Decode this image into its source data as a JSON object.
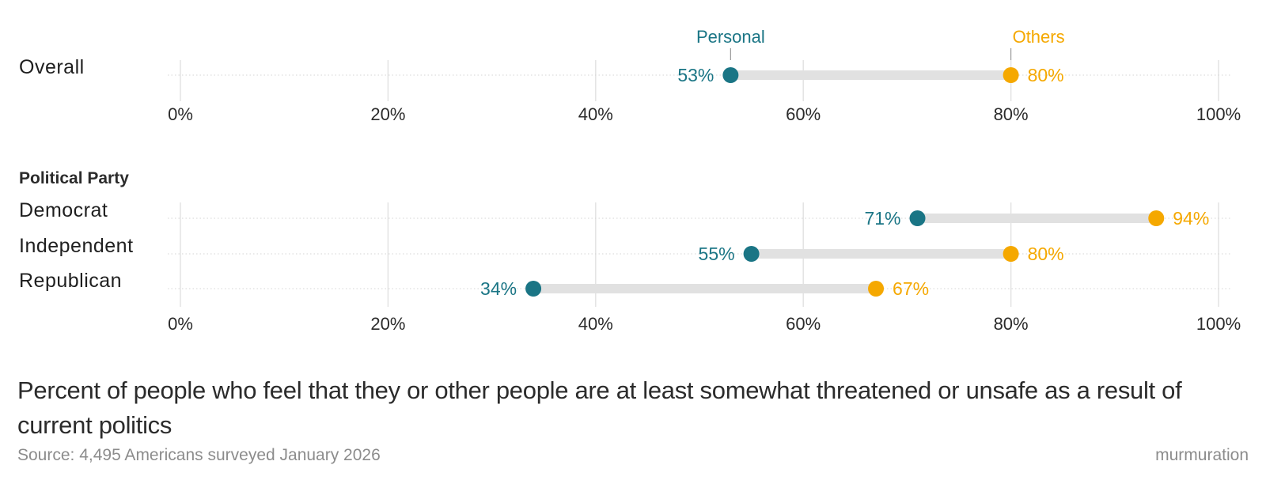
{
  "chart_data": {
    "type": "dumbbell",
    "series": [
      {
        "name": "Personal",
        "color": "#1a7585"
      },
      {
        "name": "Others",
        "color": "#f5a800"
      }
    ],
    "xlim": [
      0,
      100
    ],
    "ticks": [
      "0%",
      "20%",
      "40%",
      "60%",
      "80%",
      "100%"
    ],
    "panels": [
      {
        "id": "overall",
        "heading": "",
        "show_series_labels": true,
        "rows": [
          {
            "label": "Overall",
            "personal": 53,
            "others": 80,
            "personal_label": "53%",
            "others_label": "80%"
          }
        ]
      },
      {
        "id": "party",
        "heading": "Political Party",
        "show_series_labels": false,
        "rows": [
          {
            "label": "Democrat",
            "personal": 71,
            "others": 94,
            "personal_label": "71%",
            "others_label": "94%"
          },
          {
            "label": "Independent",
            "personal": 55,
            "others": 80,
            "personal_label": "55%",
            "others_label": "80%"
          },
          {
            "label": "Republican",
            "personal": 34,
            "others": 67,
            "personal_label": "34%",
            "others_label": "67%"
          }
        ]
      }
    ]
  },
  "caption": "Percent of people who feel that they or other people are at least somewhat threatened or unsafe as a result of current politics",
  "source": "Source: 4,495 Americans surveyed January 2026",
  "brand": "murmuration"
}
